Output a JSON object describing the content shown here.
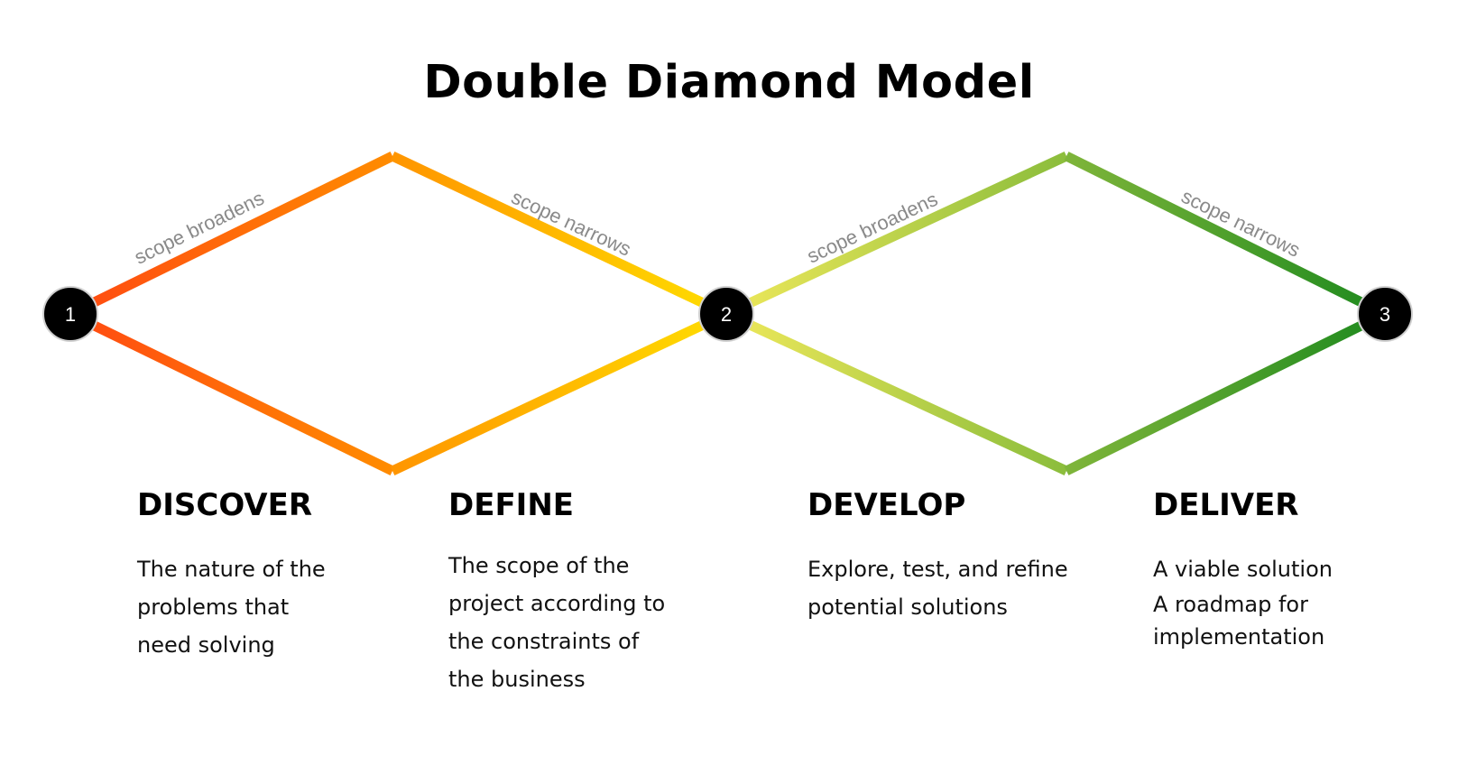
{
  "title": "Double Diamond Model",
  "nodes": [
    "1",
    "2",
    "3"
  ],
  "edge_labels": {
    "discover_upper": "scope broadens",
    "define_upper": "scope narrows",
    "develop_upper": "scope broadens",
    "deliver_upper": "scope narrows"
  },
  "phases": [
    {
      "title": "DISCOVER",
      "lines": [
        "The nature of the",
        "problems that",
        "need solving"
      ]
    },
    {
      "title": "DEFINE",
      "lines": [
        "The scope of the",
        "project according to",
        "the constraints of",
        "the business"
      ]
    },
    {
      "title": "DEVELOP",
      "lines": [
        "Explore, test, and refine",
        "potential solutions"
      ]
    },
    {
      "title": "DELIVER",
      "lines": [
        "A viable solution",
        "A roadmap for",
        "implementation"
      ]
    }
  ],
  "colors": {
    "discover_start": "#ff4a12",
    "discover_end": "#ff8c00",
    "define_start": "#ff9500",
    "define_end": "#ffdd00",
    "develop_start": "#eee85a",
    "develop_end": "#8bbd3c",
    "deliver_start": "#7fb53a",
    "deliver_end": "#1e8a1e",
    "node_fill": "#000000",
    "edge_label": "#8a8a8a"
  }
}
